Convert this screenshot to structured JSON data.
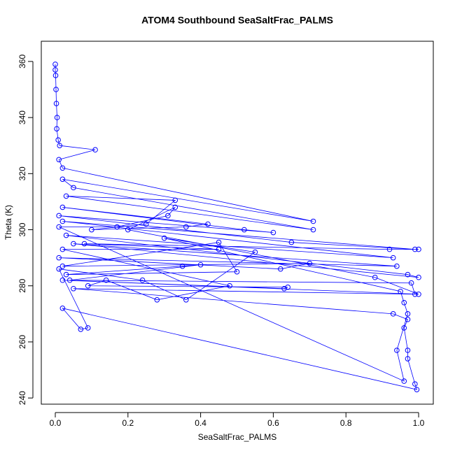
{
  "chart_data": {
    "type": "line",
    "title": "ATOM4 Southbound SeaSaltFrac_PALMS",
    "x_label": "SeaSaltFrac_PALMS",
    "y_label": "Theta (K)",
    "x": [
      0.0,
      0.0,
      0.001,
      0.002,
      0.003,
      0.005,
      0.004,
      0.008,
      0.012,
      0.11,
      0.01,
      0.02,
      0.71,
      0.02,
      0.05,
      0.71,
      0.03,
      0.33,
      0.25,
      0.1,
      0.36,
      0.42,
      0.02,
      0.52,
      0.6,
      0.01,
      0.65,
      0.99,
      0.02,
      0.93,
      0.03,
      0.97,
      1.0,
      0.05,
      0.94,
      0.01,
      0.62,
      0.7,
      0.02,
      0.45,
      0.5,
      0.03,
      0.35,
      0.4,
      0.04,
      0.98,
      0.99,
      0.05,
      0.93,
      0.97,
      0.96,
      0.97,
      0.97,
      0.99,
      0.995,
      0.02,
      0.07,
      0.09,
      0.01,
      0.24,
      0.36,
      0.55,
      0.3,
      0.95,
      0.96,
      0.97,
      0.94,
      0.96,
      0.01,
      0.17,
      0.31,
      0.33,
      0.2,
      0.88,
      1.0,
      0.02,
      0.63,
      0.64,
      0.09,
      0.14,
      0.28,
      0.48,
      0.02,
      0.45,
      0.08,
      0.92,
      1.0
    ],
    "series": [
      {
        "color": "#0000ff",
        "values": [
          359,
          357,
          355,
          350,
          345,
          340,
          336,
          332,
          330,
          328.5,
          325,
          322,
          303,
          318,
          315,
          300,
          312,
          310.5,
          302,
          300,
          301,
          302,
          308,
          300,
          299,
          305,
          295.5,
          293,
          303,
          290,
          298,
          284,
          283,
          295,
          287,
          290,
          286,
          288,
          287,
          295.5,
          285,
          284,
          287,
          287.5,
          282,
          281,
          277,
          279,
          270,
          268,
          265,
          257,
          254,
          245,
          243,
          272,
          264.5,
          265,
          286,
          282,
          275,
          292,
          297,
          278,
          274,
          270,
          257,
          246,
          301,
          301,
          305,
          308,
          300,
          283,
          277,
          282,
          279,
          279.5,
          280,
          282,
          275,
          280,
          293,
          293,
          295,
          293,
          293
        ]
      }
    ],
    "xlim": [
      -0.0385,
      1.0404
    ],
    "ylim": [
      237.8,
      367.2
    ],
    "xticks": [
      {
        "value": 0,
        "label": "0.0"
      },
      0.2,
      0.4,
      0.6,
      0.8,
      {
        "value": 1,
        "label": "1.0"
      }
    ],
    "yticks": [
      240,
      260,
      280,
      300,
      320,
      340,
      360
    ]
  }
}
